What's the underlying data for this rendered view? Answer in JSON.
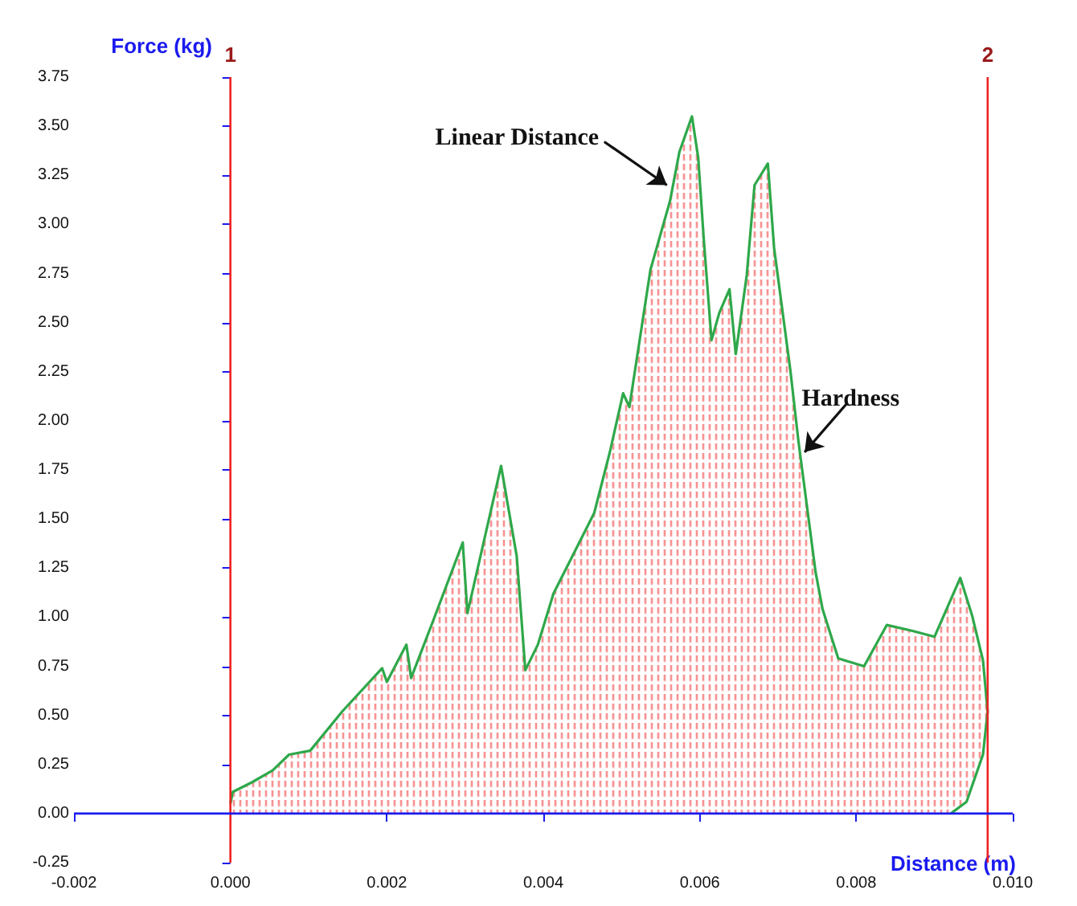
{
  "chart_data": {
    "type": "area",
    "xlabel": "Distance (m)",
    "ylabel": "Force (kg)",
    "x": [
      0,
      3e-05,
      0.00028,
      0.00054,
      0.00075,
      0.00102,
      0.00143,
      0.00194,
      0.002,
      0.00225,
      0.00231,
      0.00259,
      0.00297,
      0.00303,
      0.00346,
      0.00366,
      0.00377,
      0.00393,
      0.00413,
      0.00465,
      0.00485,
      0.00502,
      0.0051,
      0.00537,
      0.00562,
      0.00574,
      0.0059,
      0.00598,
      0.00605,
      0.00615,
      0.00625,
      0.00638,
      0.00646,
      0.0066,
      0.0067,
      0.00687,
      0.00695,
      0.00716,
      0.00726,
      0.00748,
      0.00757,
      0.00777,
      0.0081,
      0.00839,
      0.00872,
      0.009,
      0.00933,
      0.00948,
      0.00962,
      0.00968,
      0.00962,
      0.00941,
      0.00921
    ],
    "series": [
      {
        "color": "#2ea84a",
        "values": [
          0.05,
          0.11,
          0.16,
          0.22,
          0.3,
          0.32,
          0.52,
          0.74,
          0.67,
          0.86,
          0.69,
          0.98,
          1.38,
          1.02,
          1.77,
          1.31,
          0.73,
          0.86,
          1.12,
          1.53,
          1.84,
          2.14,
          2.07,
          2.77,
          3.12,
          3.37,
          3.55,
          3.34,
          2.93,
          2.41,
          2.55,
          2.67,
          2.34,
          2.74,
          3.2,
          3.31,
          2.88,
          2.25,
          1.9,
          1.23,
          1.04,
          0.79,
          0.75,
          0.96,
          0.93,
          0.9,
          1.2,
          1.01,
          0.78,
          0.52,
          0.3,
          0.06,
          0
        ]
      }
    ],
    "xlim": [
      -0.002,
      0.01
    ],
    "xticks": [
      {
        "value": -0.002,
        "label": "-0.002"
      },
      {
        "value": 0,
        "label": "0.000"
      },
      {
        "value": 0.002,
        "label": "0.002"
      },
      {
        "value": 0.004,
        "label": "0.004"
      },
      {
        "value": 0.006,
        "label": "0.006"
      },
      {
        "value": 0.008,
        "label": "0.008"
      },
      {
        "value": 0.01,
        "label": "0.010"
      }
    ],
    "ylim": [
      -0.25,
      3.75
    ],
    "yticks": [
      {
        "value": -0.25,
        "label": "-0.25"
      },
      {
        "value": 0,
        "label": "0.00"
      },
      {
        "value": 0.25,
        "label": "0.25"
      },
      {
        "value": 0.5,
        "label": "0.50"
      },
      {
        "value": 0.75,
        "label": "0.75"
      },
      {
        "value": 1,
        "label": "1.00"
      },
      {
        "value": 1.25,
        "label": "1.25"
      },
      {
        "value": 1.5,
        "label": "1.50"
      },
      {
        "value": 1.75,
        "label": "1.75"
      },
      {
        "value": 2,
        "label": "2.00"
      },
      {
        "value": 2.25,
        "label": "2.25"
      },
      {
        "value": 2.5,
        "label": "2.50"
      },
      {
        "value": 2.75,
        "label": "2.75"
      },
      {
        "value": 3,
        "label": "3.00"
      },
      {
        "value": 3.25,
        "label": "3.25"
      },
      {
        "value": 3.5,
        "label": "3.50"
      },
      {
        "value": 3.75,
        "label": "3.75"
      }
    ],
    "ref_lines": [
      {
        "axis": "x",
        "value": 0,
        "color": "#ee2222"
      },
      {
        "axis": "x",
        "value": 0.00968,
        "color": "#ee2222"
      },
      {
        "axis": "y",
        "value": 0,
        "color": "#1a1aee"
      }
    ],
    "annotations": [
      {
        "text": "Linear Distance",
        "x": 0.00558,
        "y": 3.2
      },
      {
        "text": "Hardness",
        "x": 0.00734,
        "y": 1.84
      },
      "1",
      "2"
    ],
    "grid": false,
    "marker": "none",
    "line_style": "solid"
  }
}
